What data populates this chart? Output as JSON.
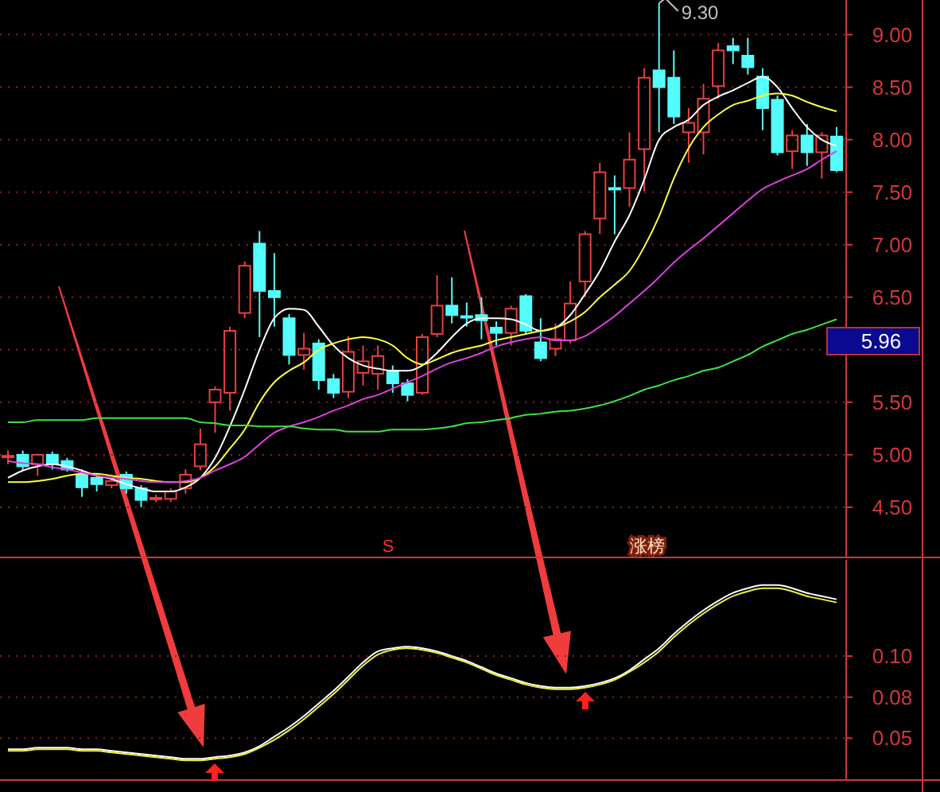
{
  "chart_data": [
    {
      "type": "candlestick",
      "categories": [
        null,
        null,
        null,
        null,
        null,
        null,
        null,
        null,
        null,
        null,
        null,
        null,
        null,
        null,
        null,
        null,
        null,
        null,
        null,
        null,
        null,
        null,
        null,
        null,
        null,
        null,
        null,
        null,
        null,
        null,
        null,
        null,
        null,
        null,
        null,
        null,
        null,
        null,
        null,
        null,
        null,
        null,
        null,
        null,
        null,
        null,
        null,
        null,
        null,
        null,
        null,
        null,
        null,
        null,
        null,
        null,
        null
      ],
      "ohlc": [
        [
          4.98,
          5.04,
          4.91,
          4.99
        ],
        [
          5.0,
          5.04,
          4.85,
          4.89
        ],
        [
          4.91,
          5.01,
          4.8,
          5.0
        ],
        [
          5.0,
          5.03,
          4.86,
          4.91
        ],
        [
          4.94,
          4.97,
          4.84,
          4.86
        ],
        [
          4.81,
          4.86,
          4.6,
          4.69
        ],
        [
          4.78,
          4.81,
          4.65,
          4.72
        ],
        [
          4.71,
          4.78,
          4.68,
          4.75
        ],
        [
          4.81,
          4.84,
          4.63,
          4.68
        ],
        [
          4.68,
          4.71,
          4.5,
          4.57
        ],
        [
          4.58,
          4.62,
          4.55,
          4.59
        ],
        [
          4.58,
          4.68,
          4.55,
          4.65
        ],
        [
          4.68,
          4.86,
          4.63,
          4.81
        ],
        [
          4.89,
          5.25,
          4.85,
          5.1
        ],
        [
          5.5,
          5.65,
          5.21,
          5.62
        ],
        [
          5.59,
          6.22,
          5.42,
          6.18
        ],
        [
          6.35,
          6.84,
          6.3,
          6.8
        ],
        [
          7.01,
          7.13,
          6.12,
          6.56
        ],
        [
          6.56,
          6.92,
          6.22,
          6.5
        ],
        [
          6.3,
          6.34,
          5.86,
          5.95
        ],
        [
          5.95,
          6.16,
          5.81,
          6.01
        ],
        [
          6.06,
          6.1,
          5.62,
          5.71
        ],
        [
          5.72,
          5.77,
          5.54,
          5.59
        ],
        [
          5.6,
          6.13,
          5.54,
          5.98
        ],
        [
          5.78,
          6.04,
          5.66,
          5.89
        ],
        [
          5.77,
          6.04,
          5.62,
          5.94
        ],
        [
          5.8,
          5.85,
          5.59,
          5.68
        ],
        [
          5.68,
          5.72,
          5.51,
          5.57
        ],
        [
          5.59,
          6.15,
          5.57,
          6.12
        ],
        [
          6.15,
          6.71,
          6.12,
          6.42
        ],
        [
          6.42,
          6.69,
          6.25,
          6.33
        ],
        [
          6.32,
          6.45,
          6.22,
          6.31
        ],
        [
          6.33,
          6.5,
          6.1,
          6.28
        ],
        [
          6.21,
          6.27,
          6.04,
          6.16
        ],
        [
          6.16,
          6.42,
          6.04,
          6.39
        ],
        [
          6.51,
          6.53,
          6.15,
          6.18
        ],
        [
          6.07,
          6.3,
          5.89,
          5.92
        ],
        [
          6.01,
          6.25,
          5.94,
          6.1
        ],
        [
          6.09,
          6.65,
          6.06,
          6.44
        ],
        [
          6.65,
          7.13,
          6.5,
          7.1
        ],
        [
          7.25,
          7.78,
          7.1,
          7.69
        ],
        [
          7.54,
          7.66,
          7.1,
          7.53
        ],
        [
          7.54,
          8.07,
          7.36,
          7.81
        ],
        [
          7.91,
          8.68,
          7.51,
          8.59
        ],
        [
          8.66,
          9.3,
          8.07,
          8.5
        ],
        [
          8.59,
          8.85,
          8.15,
          8.22
        ],
        [
          8.07,
          8.3,
          7.78,
          8.16
        ],
        [
          8.07,
          8.53,
          7.86,
          8.39
        ],
        [
          8.51,
          8.92,
          8.39,
          8.85
        ],
        [
          8.89,
          8.97,
          8.72,
          8.85
        ],
        [
          8.8,
          8.97,
          8.62,
          8.69
        ],
        [
          8.6,
          8.68,
          8.09,
          8.3
        ],
        [
          8.38,
          8.42,
          7.85,
          7.88
        ],
        [
          7.89,
          8.09,
          7.72,
          8.04
        ],
        [
          8.04,
          8.15,
          7.75,
          7.88
        ],
        [
          7.88,
          8.07,
          7.63,
          8.04
        ],
        [
          8.03,
          8.12,
          7.69,
          7.71
        ]
      ],
      "series": [
        {
          "type": "line",
          "color": "#ffffff",
          "values": [
            4.78,
            4.85,
            4.89,
            4.91,
            4.89,
            4.85,
            4.8,
            4.77,
            4.72,
            4.68,
            4.65,
            4.65,
            4.69,
            4.78,
            4.97,
            5.27,
            5.62,
            6.0,
            6.3,
            6.39,
            6.38,
            6.22,
            6.04,
            5.92,
            5.85,
            5.82,
            5.8,
            5.8,
            5.85,
            5.97,
            6.12,
            6.25,
            6.3,
            6.3,
            6.29,
            6.24,
            6.18,
            6.21,
            6.33,
            6.53,
            6.75,
            7.03,
            7.28,
            7.62,
            8.0,
            8.12,
            8.19,
            8.33,
            8.41,
            8.47,
            8.54,
            8.6,
            8.5,
            8.3,
            8.12,
            8.0,
            7.94
          ]
        },
        {
          "type": "line",
          "color": "#ffff40",
          "values": [
            4.74,
            4.74,
            4.75,
            4.77,
            4.8,
            4.82,
            4.82,
            4.8,
            4.78,
            4.77,
            4.75,
            4.74,
            4.74,
            4.78,
            4.89,
            5.06,
            5.24,
            5.5,
            5.69,
            5.8,
            5.88,
            6.0,
            6.06,
            6.1,
            6.12,
            6.1,
            6.04,
            5.92,
            5.86,
            5.91,
            5.97,
            6.01,
            6.04,
            6.09,
            6.12,
            6.15,
            6.18,
            6.21,
            6.27,
            6.36,
            6.5,
            6.62,
            6.75,
            6.98,
            7.27,
            7.63,
            7.92,
            8.12,
            8.24,
            8.33,
            8.37,
            8.42,
            8.44,
            8.42,
            8.36,
            8.31,
            8.27
          ]
        },
        {
          "type": "line",
          "color": "#e040e0",
          "values": [
            4.94,
            4.92,
            4.91,
            4.88,
            4.86,
            4.83,
            4.8,
            4.78,
            4.77,
            4.75,
            4.74,
            4.74,
            4.75,
            4.78,
            4.85,
            4.91,
            4.98,
            5.1,
            5.21,
            5.27,
            5.31,
            5.36,
            5.42,
            5.47,
            5.53,
            5.57,
            5.63,
            5.69,
            5.75,
            5.82,
            5.88,
            5.92,
            5.97,
            6.03,
            6.07,
            6.1,
            6.12,
            6.09,
            6.09,
            6.13,
            6.22,
            6.32,
            6.44,
            6.56,
            6.69,
            6.83,
            6.95,
            7.06,
            7.18,
            7.3,
            7.42,
            7.53,
            7.6,
            7.66,
            7.72,
            7.81,
            7.89
          ]
        },
        {
          "type": "line",
          "color": "#40e040",
          "values": [
            5.31,
            5.31,
            5.33,
            5.33,
            5.33,
            5.33,
            5.35,
            5.35,
            5.35,
            5.35,
            5.35,
            5.35,
            5.35,
            5.31,
            5.3,
            5.28,
            5.28,
            5.27,
            5.27,
            5.27,
            5.25,
            5.24,
            5.24,
            5.22,
            5.22,
            5.22,
            5.24,
            5.24,
            5.24,
            5.25,
            5.27,
            5.3,
            5.31,
            5.33,
            5.35,
            5.38,
            5.39,
            5.41,
            5.42,
            5.44,
            5.47,
            5.51,
            5.56,
            5.62,
            5.66,
            5.71,
            5.75,
            5.8,
            5.83,
            5.89,
            5.95,
            6.03,
            6.09,
            6.15,
            6.19,
            6.24,
            6.29
          ]
        }
      ],
      "ylim": [
        4.03,
        9.33
      ],
      "yticks": [
        {
          "value": 4.5,
          "label": "4.50"
        },
        {
          "value": 5,
          "label": "5.00"
        },
        {
          "value": 5.5,
          "label": "5.50"
        },
        {
          "value": 6,
          "label": null
        },
        {
          "value": 6.5,
          "label": "6.50"
        },
        {
          "value": 7,
          "label": "7.00"
        },
        {
          "value": 7.5,
          "label": "7.50"
        },
        {
          "value": 8,
          "label": "8.00"
        },
        {
          "value": 8.5,
          "label": "8.50"
        },
        {
          "value": 9,
          "label": "9.00"
        }
      ],
      "grid": "y",
      "annotations": [
        "9.30",
        "5.96",
        "S",
        "涨榜"
      ]
    },
    {
      "type": "line",
      "categories": [
        null,
        null,
        null,
        null,
        null,
        null,
        null,
        null,
        null,
        null,
        null,
        null,
        null,
        null,
        null,
        null,
        null,
        null,
        null,
        null,
        null,
        null,
        null,
        null,
        null,
        null,
        null,
        null,
        null,
        null,
        null,
        null,
        null,
        null,
        null,
        null,
        null,
        null,
        null,
        null,
        null,
        null,
        null,
        null,
        null,
        null,
        null,
        null,
        null,
        null,
        null,
        null,
        null,
        null,
        null,
        null,
        null
      ],
      "series": [
        {
          "color": "#ffffff",
          "values": [
            0.043,
            0.043,
            0.044,
            0.044,
            0.044,
            0.043,
            0.043,
            0.042,
            0.041,
            0.04,
            0.039,
            0.038,
            0.037,
            0.037,
            0.038,
            0.039,
            0.041,
            0.045,
            0.051,
            0.057,
            0.064,
            0.072,
            0.08,
            0.089,
            0.098,
            0.105,
            0.107,
            0.108,
            0.107,
            0.105,
            0.102,
            0.099,
            0.095,
            0.091,
            0.088,
            0.085,
            0.083,
            0.082,
            0.082,
            0.083,
            0.085,
            0.088,
            0.093,
            0.1,
            0.107,
            0.116,
            0.124,
            0.131,
            0.137,
            0.142,
            0.145,
            0.147,
            0.147,
            0.145,
            0.142,
            0.14,
            0.138
          ]
        },
        {
          "color": "#f0f040",
          "values": [
            0.042,
            0.042,
            0.043,
            0.043,
            0.043,
            0.042,
            0.042,
            0.041,
            0.04,
            0.039,
            0.038,
            0.037,
            0.036,
            0.036,
            0.037,
            0.038,
            0.04,
            0.044,
            0.049,
            0.055,
            0.062,
            0.07,
            0.078,
            0.087,
            0.096,
            0.103,
            0.106,
            0.107,
            0.106,
            0.104,
            0.101,
            0.098,
            0.094,
            0.09,
            0.087,
            0.084,
            0.082,
            0.081,
            0.081,
            0.082,
            0.084,
            0.087,
            0.092,
            0.098,
            0.105,
            0.114,
            0.122,
            0.129,
            0.135,
            0.14,
            0.143,
            0.145,
            0.145,
            0.143,
            0.14,
            0.138,
            0.136
          ]
        }
      ],
      "ylim": [
        0.024,
        0.163
      ],
      "yticks": [
        {
          "value": 0.102,
          "label": "0.10"
        },
        {
          "value": 0.076,
          "label": "0.08"
        },
        {
          "value": 0.05,
          "label": "0.05"
        }
      ],
      "grid": "y"
    }
  ]
}
